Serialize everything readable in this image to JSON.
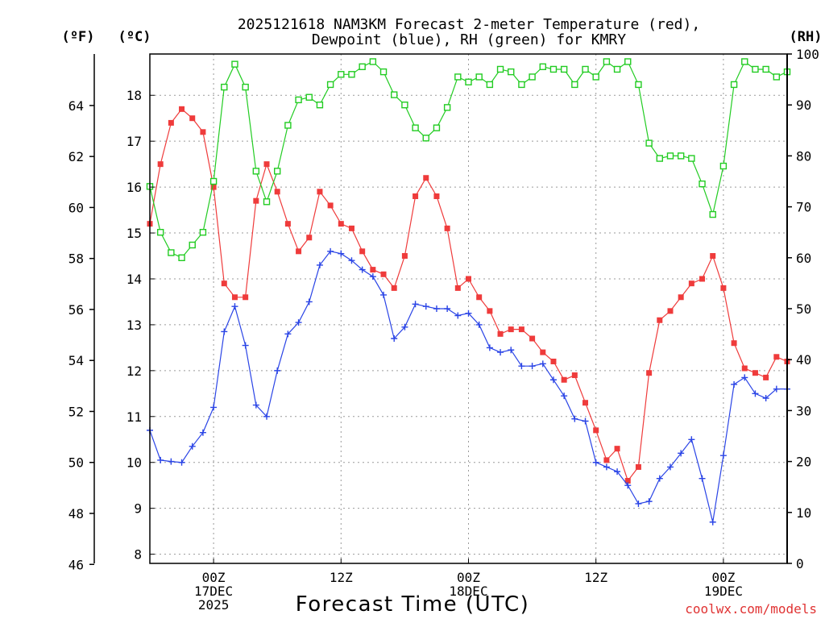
{
  "colors": {
    "temp": "#ef3b3b",
    "dewpoint": "#2a44e6",
    "rh": "#22cc22",
    "grid": "#9a9a9a",
    "axis": "#000000",
    "credit": "#e03333"
  },
  "chart_data": {
    "type": "line",
    "title": [
      "2025121618 NAM3KM Forecast 2-meter Temperature (red),",
      "Dewpoint (blue), RH (green) for KMRY"
    ],
    "xlabel": "Forecast Time (UTC)",
    "unit_labels": {
      "fahrenheit": "(ºF)",
      "celsius": "(ºC)",
      "rh": "(RH)"
    },
    "credit": "coolwx.com/models",
    "x_hours_range": [
      0,
      60
    ],
    "x_ticks": [
      {
        "hour": 6,
        "lines": [
          "00Z",
          "17DEC",
          "2025"
        ]
      },
      {
        "hour": 18,
        "lines": [
          "12Z"
        ]
      },
      {
        "hour": 30,
        "lines": [
          "00Z",
          "18DEC"
        ]
      },
      {
        "hour": 42,
        "lines": [
          "12Z"
        ]
      },
      {
        "hour": 54,
        "lines": [
          "00Z",
          "19DEC"
        ]
      }
    ],
    "ylim_celsius": [
      7.8,
      18.9
    ],
    "celsius_ticks": [
      8,
      9,
      10,
      11,
      12,
      13,
      14,
      15,
      16,
      17,
      18
    ],
    "fahrenheit_ticks": [
      46,
      48,
      50,
      52,
      54,
      56,
      58,
      60,
      62,
      64
    ],
    "ylim_rh": [
      0,
      100
    ],
    "rh_ticks": [
      0,
      10,
      20,
      30,
      40,
      50,
      60,
      70,
      80,
      90,
      100
    ],
    "series": [
      {
        "name": "Temperature (red)",
        "axis": "celsius",
        "marker": "filled-square",
        "hours": [
          0,
          1,
          2,
          3,
          4,
          5,
          6,
          7,
          8,
          9,
          10,
          11,
          12,
          13,
          14,
          15,
          16,
          17,
          18,
          19,
          20,
          21,
          22,
          23,
          24,
          25,
          26,
          27,
          28,
          29,
          30,
          31,
          32,
          33,
          34,
          35,
          36,
          37,
          38,
          39,
          40,
          41,
          42,
          43,
          44,
          45,
          46,
          47,
          48,
          49,
          50,
          51,
          52,
          53,
          54,
          55,
          56,
          57,
          58,
          59,
          60
        ],
        "values": [
          15.2,
          16.5,
          17.4,
          17.7,
          17.5,
          17.2,
          16.0,
          13.9,
          13.6,
          13.6,
          15.7,
          16.5,
          15.9,
          15.2,
          14.6,
          14.9,
          15.9,
          15.6,
          15.2,
          15.1,
          14.6,
          14.2,
          14.1,
          13.8,
          14.5,
          15.8,
          16.2,
          15.8,
          15.1,
          13.8,
          14.0,
          13.6,
          13.3,
          12.8,
          12.9,
          12.9,
          12.7,
          12.4,
          12.2,
          11.8,
          11.9,
          11.3,
          10.7,
          10.05,
          10.3,
          9.6,
          9.9,
          11.95,
          13.1,
          13.3,
          13.6,
          13.9,
          14.0,
          14.5,
          13.8,
          12.6,
          12.05,
          11.95,
          11.85,
          12.3,
          12.2
        ]
      },
      {
        "name": "Dewpoint (blue)",
        "axis": "celsius",
        "marker": "plus",
        "hours": [
          0,
          1,
          2,
          3,
          4,
          5,
          6,
          7,
          8,
          9,
          10,
          11,
          12,
          13,
          14,
          15,
          16,
          17,
          18,
          19,
          20,
          21,
          22,
          23,
          24,
          25,
          26,
          27,
          28,
          29,
          30,
          31,
          32,
          33,
          34,
          35,
          36,
          37,
          38,
          39,
          40,
          41,
          42,
          43,
          44,
          45,
          46,
          47,
          48,
          49,
          50,
          51,
          52,
          53,
          54,
          55,
          56,
          57,
          58,
          59,
          60
        ],
        "values": [
          10.7,
          10.05,
          10.02,
          10.0,
          10.35,
          10.65,
          11.2,
          12.85,
          13.4,
          12.55,
          11.25,
          11.0,
          12.0,
          12.8,
          13.05,
          13.5,
          14.3,
          14.6,
          14.55,
          14.4,
          14.2,
          14.05,
          13.65,
          12.7,
          12.95,
          13.45,
          13.4,
          13.35,
          13.35,
          13.2,
          13.25,
          13.0,
          12.5,
          12.4,
          12.45,
          12.1,
          12.1,
          12.15,
          11.8,
          11.45,
          10.95,
          10.9,
          10.0,
          9.9,
          9.8,
          9.5,
          9.1,
          9.15,
          9.65,
          9.9,
          10.2,
          10.5,
          9.65,
          8.7,
          10.15,
          11.7,
          11.85,
          11.5,
          11.4,
          11.6,
          11.6
        ]
      },
      {
        "name": "RH (green)",
        "axis": "rh",
        "marker": "open-square",
        "hours": [
          0,
          1,
          2,
          3,
          4,
          5,
          6,
          7,
          8,
          9,
          10,
          11,
          12,
          13,
          14,
          15,
          16,
          17,
          18,
          19,
          20,
          21,
          22,
          23,
          24,
          25,
          26,
          27,
          28,
          29,
          30,
          31,
          32,
          33,
          34,
          35,
          36,
          37,
          38,
          39,
          40,
          41,
          42,
          43,
          44,
          45,
          46,
          47,
          48,
          49,
          50,
          51,
          52,
          53,
          54,
          55,
          56,
          57,
          58,
          59,
          60
        ],
        "values": [
          74,
          65,
          61,
          60,
          62.5,
          65,
          75,
          93.5,
          98,
          93.5,
          77,
          71,
          77,
          86,
          91,
          91.5,
          90,
          94,
          96,
          96,
          97.5,
          98.5,
          96.5,
          92,
          90,
          85.5,
          83.5,
          85.5,
          89.5,
          95.5,
          94.5,
          95.5,
          94,
          97,
          96.5,
          94,
          95.5,
          97.5,
          97,
          97,
          94,
          97,
          95.5,
          98.5,
          97,
          98.5,
          94,
          82.5,
          79.5,
          80,
          80,
          79.5,
          74.5,
          68.5,
          78,
          94,
          98.5,
          97,
          97,
          95.5,
          96.5
        ]
      }
    ]
  }
}
